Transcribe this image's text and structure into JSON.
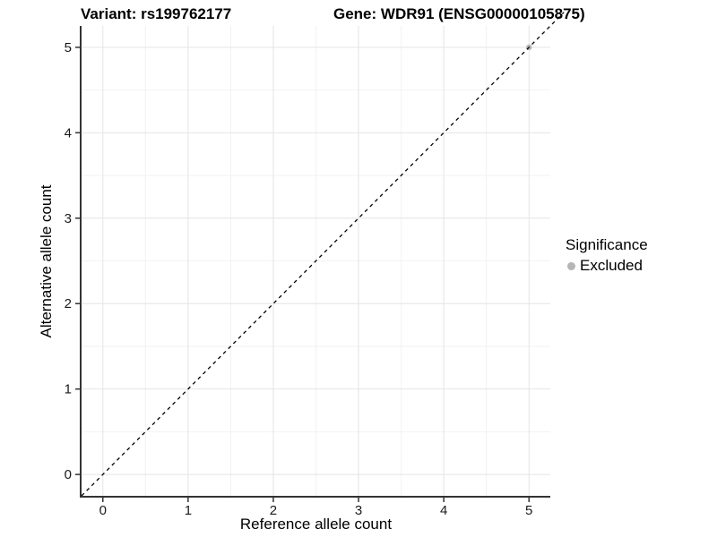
{
  "titles": {
    "left": "Variant: rs199762177",
    "right": "Gene: WDR91 (ENSG00000105875)"
  },
  "chart_data": {
    "type": "scatter",
    "title_left": "Variant: rs199762177",
    "title_right": "Gene: WDR91 (ENSG00000105875)",
    "xlabel": "Reference allele count",
    "ylabel": "Alternative allele count",
    "xlim": [
      -0.25,
      5.25
    ],
    "ylim": [
      -0.25,
      5.25
    ],
    "x_ticks": [
      0,
      1,
      2,
      3,
      4,
      5
    ],
    "y_ticks": [
      0,
      1,
      2,
      3,
      4,
      5
    ],
    "x_minor_ticks": [
      0.5,
      1.5,
      2.5,
      3.5,
      4.5
    ],
    "y_minor_ticks": [
      0.5,
      1.5,
      2.5,
      3.5,
      4.5
    ],
    "grid": "major+minor",
    "identity_line": {
      "style": "dashed",
      "color": "#000000",
      "from": [
        -0.25,
        -0.25
      ],
      "to": [
        5.41,
        5.41
      ]
    },
    "series": [
      {
        "name": "Excluded",
        "color": "#b5b5b5",
        "points": [
          {
            "x": 5,
            "y": 5
          }
        ]
      }
    ],
    "legend": {
      "title": "Significance",
      "position": "right",
      "items": [
        {
          "label": "Excluded",
          "color": "#b5b5b5"
        }
      ]
    },
    "colors": {
      "grid_major": "#e4e4e4",
      "grid_minor": "#f2f2f2",
      "axis_line": "#333333",
      "tick_mark": "#333333",
      "point": "#b5b5b5",
      "text": "#000000"
    }
  }
}
